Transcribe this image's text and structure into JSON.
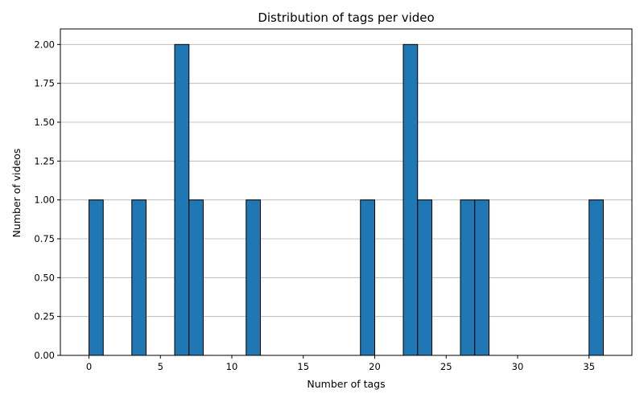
{
  "chart_data": {
    "type": "bar",
    "title": "Distribution of tags per video",
    "xlabel": "Number of tags",
    "ylabel": "Number of videos",
    "xlim": [
      -2,
      38
    ],
    "ylim": [
      0,
      2.1
    ],
    "xticks": [
      0,
      5,
      10,
      15,
      20,
      25,
      30,
      35
    ],
    "yticks": [
      0.0,
      0.25,
      0.5,
      0.75,
      1.0,
      1.25,
      1.5,
      1.75,
      2.0
    ],
    "ytick_labels": [
      "0.00",
      "0.25",
      "0.50",
      "0.75",
      "1.00",
      "1.25",
      "1.50",
      "1.75",
      "2.00"
    ],
    "grid": "y",
    "bins": [
      {
        "start": 0,
        "end": 1,
        "count": 1
      },
      {
        "start": 3,
        "end": 4,
        "count": 1
      },
      {
        "start": 6,
        "end": 7,
        "count": 2
      },
      {
        "start": 7,
        "end": 8,
        "count": 1
      },
      {
        "start": 11,
        "end": 12,
        "count": 1
      },
      {
        "start": 19,
        "end": 20,
        "count": 1
      },
      {
        "start": 22,
        "end": 23,
        "count": 2
      },
      {
        "start": 23,
        "end": 24,
        "count": 1
      },
      {
        "start": 26,
        "end": 27,
        "count": 1
      },
      {
        "start": 27,
        "end": 28,
        "count": 1
      },
      {
        "start": 35,
        "end": 36,
        "count": 1
      }
    ],
    "bar_color": "#1f77b4",
    "edge_color": "#000000",
    "grid_color": "#b0b0b0"
  }
}
